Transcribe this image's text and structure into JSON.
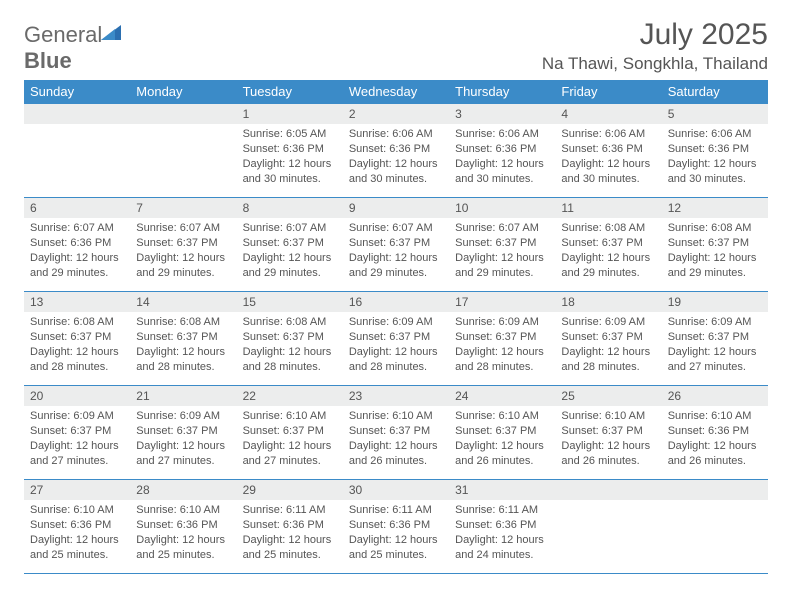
{
  "logo": {
    "word1": "General",
    "word2": "Blue"
  },
  "header": {
    "month_title": "July 2025",
    "location": "Na Thawi, Songkhla, Thailand"
  },
  "colors": {
    "header_bg": "#3b8bc8",
    "header_text": "#ffffff",
    "daynum_bg": "#eceded",
    "border": "#3b8bc8",
    "body_text": "#555555"
  },
  "weekdays": [
    "Sunday",
    "Monday",
    "Tuesday",
    "Wednesday",
    "Thursday",
    "Friday",
    "Saturday"
  ],
  "weeks": [
    [
      null,
      null,
      {
        "n": "1",
        "sr": "6:05 AM",
        "ss": "6:36 PM",
        "dl": "12 hours and 30 minutes."
      },
      {
        "n": "2",
        "sr": "6:06 AM",
        "ss": "6:36 PM",
        "dl": "12 hours and 30 minutes."
      },
      {
        "n": "3",
        "sr": "6:06 AM",
        "ss": "6:36 PM",
        "dl": "12 hours and 30 minutes."
      },
      {
        "n": "4",
        "sr": "6:06 AM",
        "ss": "6:36 PM",
        "dl": "12 hours and 30 minutes."
      },
      {
        "n": "5",
        "sr": "6:06 AM",
        "ss": "6:36 PM",
        "dl": "12 hours and 30 minutes."
      }
    ],
    [
      {
        "n": "6",
        "sr": "6:07 AM",
        "ss": "6:36 PM",
        "dl": "12 hours and 29 minutes."
      },
      {
        "n": "7",
        "sr": "6:07 AM",
        "ss": "6:37 PM",
        "dl": "12 hours and 29 minutes."
      },
      {
        "n": "8",
        "sr": "6:07 AM",
        "ss": "6:37 PM",
        "dl": "12 hours and 29 minutes."
      },
      {
        "n": "9",
        "sr": "6:07 AM",
        "ss": "6:37 PM",
        "dl": "12 hours and 29 minutes."
      },
      {
        "n": "10",
        "sr": "6:07 AM",
        "ss": "6:37 PM",
        "dl": "12 hours and 29 minutes."
      },
      {
        "n": "11",
        "sr": "6:08 AM",
        "ss": "6:37 PM",
        "dl": "12 hours and 29 minutes."
      },
      {
        "n": "12",
        "sr": "6:08 AM",
        "ss": "6:37 PM",
        "dl": "12 hours and 29 minutes."
      }
    ],
    [
      {
        "n": "13",
        "sr": "6:08 AM",
        "ss": "6:37 PM",
        "dl": "12 hours and 28 minutes."
      },
      {
        "n": "14",
        "sr": "6:08 AM",
        "ss": "6:37 PM",
        "dl": "12 hours and 28 minutes."
      },
      {
        "n": "15",
        "sr": "6:08 AM",
        "ss": "6:37 PM",
        "dl": "12 hours and 28 minutes."
      },
      {
        "n": "16",
        "sr": "6:09 AM",
        "ss": "6:37 PM",
        "dl": "12 hours and 28 minutes."
      },
      {
        "n": "17",
        "sr": "6:09 AM",
        "ss": "6:37 PM",
        "dl": "12 hours and 28 minutes."
      },
      {
        "n": "18",
        "sr": "6:09 AM",
        "ss": "6:37 PM",
        "dl": "12 hours and 28 minutes."
      },
      {
        "n": "19",
        "sr": "6:09 AM",
        "ss": "6:37 PM",
        "dl": "12 hours and 27 minutes."
      }
    ],
    [
      {
        "n": "20",
        "sr": "6:09 AM",
        "ss": "6:37 PM",
        "dl": "12 hours and 27 minutes."
      },
      {
        "n": "21",
        "sr": "6:09 AM",
        "ss": "6:37 PM",
        "dl": "12 hours and 27 minutes."
      },
      {
        "n": "22",
        "sr": "6:10 AM",
        "ss": "6:37 PM",
        "dl": "12 hours and 27 minutes."
      },
      {
        "n": "23",
        "sr": "6:10 AM",
        "ss": "6:37 PM",
        "dl": "12 hours and 26 minutes."
      },
      {
        "n": "24",
        "sr": "6:10 AM",
        "ss": "6:37 PM",
        "dl": "12 hours and 26 minutes."
      },
      {
        "n": "25",
        "sr": "6:10 AM",
        "ss": "6:37 PM",
        "dl": "12 hours and 26 minutes."
      },
      {
        "n": "26",
        "sr": "6:10 AM",
        "ss": "6:36 PM",
        "dl": "12 hours and 26 minutes."
      }
    ],
    [
      {
        "n": "27",
        "sr": "6:10 AM",
        "ss": "6:36 PM",
        "dl": "12 hours and 25 minutes."
      },
      {
        "n": "28",
        "sr": "6:10 AM",
        "ss": "6:36 PM",
        "dl": "12 hours and 25 minutes."
      },
      {
        "n": "29",
        "sr": "6:11 AM",
        "ss": "6:36 PM",
        "dl": "12 hours and 25 minutes."
      },
      {
        "n": "30",
        "sr": "6:11 AM",
        "ss": "6:36 PM",
        "dl": "12 hours and 25 minutes."
      },
      {
        "n": "31",
        "sr": "6:11 AM",
        "ss": "6:36 PM",
        "dl": "12 hours and 24 minutes."
      },
      null,
      null
    ]
  ],
  "labels": {
    "sunrise": "Sunrise:",
    "sunset": "Sunset:",
    "daylight": "Daylight:"
  }
}
